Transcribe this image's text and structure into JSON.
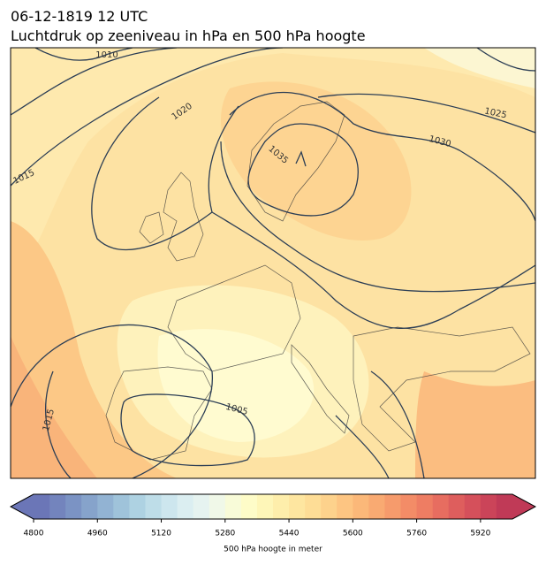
{
  "title": "06-12-1819 12 UTC",
  "subtitle": "Luchtdruk op zeeniveau in hPa en 500 hPa hoogte",
  "contour_labels": [
    "1010",
    "1020",
    "1015",
    "1035",
    "1030",
    "1025",
    "1005",
    "1015"
  ],
  "colorbar": {
    "lim": [
      4800,
      6000
    ],
    "ticks": [
      4800,
      4960,
      5120,
      5280,
      5440,
      5600,
      5760,
      5920
    ],
    "label": "500 hPa hoogte in meter",
    "colors": [
      "#6b76b7",
      "#7384bd",
      "#7b93c4",
      "#86a3cb",
      "#92b3d3",
      "#9fc3da",
      "#aed2e2",
      "#bedde8",
      "#cde6ee",
      "#dbeef1",
      "#e6f3f0",
      "#f0f8e8",
      "#f8fbd8",
      "#fefcc8",
      "#fef6b8",
      "#feeeab",
      "#fee6a0",
      "#fedd96",
      "#fdd28c",
      "#fdc582",
      "#fbb879",
      "#f9aa72",
      "#f69b6c",
      "#f38c67",
      "#ee7d63",
      "#e76d60",
      "#de5e5d",
      "#d5505b",
      "#cb4459",
      "#c03a57"
    ]
  }
}
